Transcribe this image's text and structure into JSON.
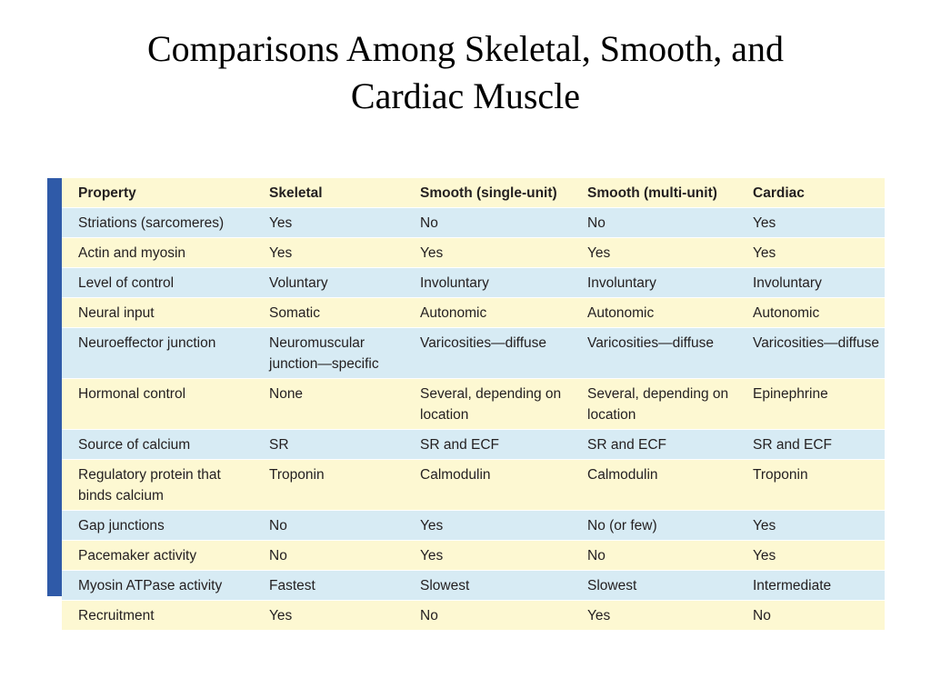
{
  "title": {
    "line1": "Comparisons Among Skeletal, Smooth, and",
    "line2": "Cardiac Muscle"
  },
  "table": {
    "headers": [
      "Property",
      "Skeletal",
      "Smooth (single-unit)",
      "Smooth (multi-unit)",
      "Cardiac"
    ],
    "rows": [
      [
        "Striations (sarcomeres)",
        "Yes",
        "No",
        "No",
        "Yes"
      ],
      [
        "Actin and myosin",
        "Yes",
        "Yes",
        "Yes",
        "Yes"
      ],
      [
        "Level of control",
        "Voluntary",
        "Involuntary",
        "Involuntary",
        "Involuntary"
      ],
      [
        "Neural input",
        "Somatic",
        "Autonomic",
        "Autonomic",
        "Autonomic"
      ],
      [
        "Neuroeffector junction",
        "Neuromuscular junction—specific",
        "Varicosities—diffuse",
        "Varicosities—diffuse",
        "Varicosities—diffuse"
      ],
      [
        "Hormonal control",
        "None",
        "Several, depending on location",
        "Several, depending on location",
        "Epinephrine"
      ],
      [
        "Source of calcium",
        "SR",
        "SR and ECF",
        "SR and ECF",
        "SR and ECF"
      ],
      [
        "Regulatory protein that binds calcium",
        "Troponin",
        "Calmodulin",
        "Calmodulin",
        "Troponin"
      ],
      [
        "Gap junctions",
        "No",
        "Yes",
        "No (or few)",
        "Yes"
      ],
      [
        "Pacemaker activity",
        "No",
        "Yes",
        "No",
        "Yes"
      ],
      [
        "Myosin ATPase activity",
        "Fastest",
        "Slowest",
        "Slowest",
        "Intermediate"
      ],
      [
        "Recruitment",
        "Yes",
        "No",
        "Yes",
        "No"
      ]
    ]
  },
  "colors": {
    "accent_bar": "#2f5aa8",
    "row_yellow": "#fdf8d2",
    "row_blue": "#d7ebf4"
  }
}
